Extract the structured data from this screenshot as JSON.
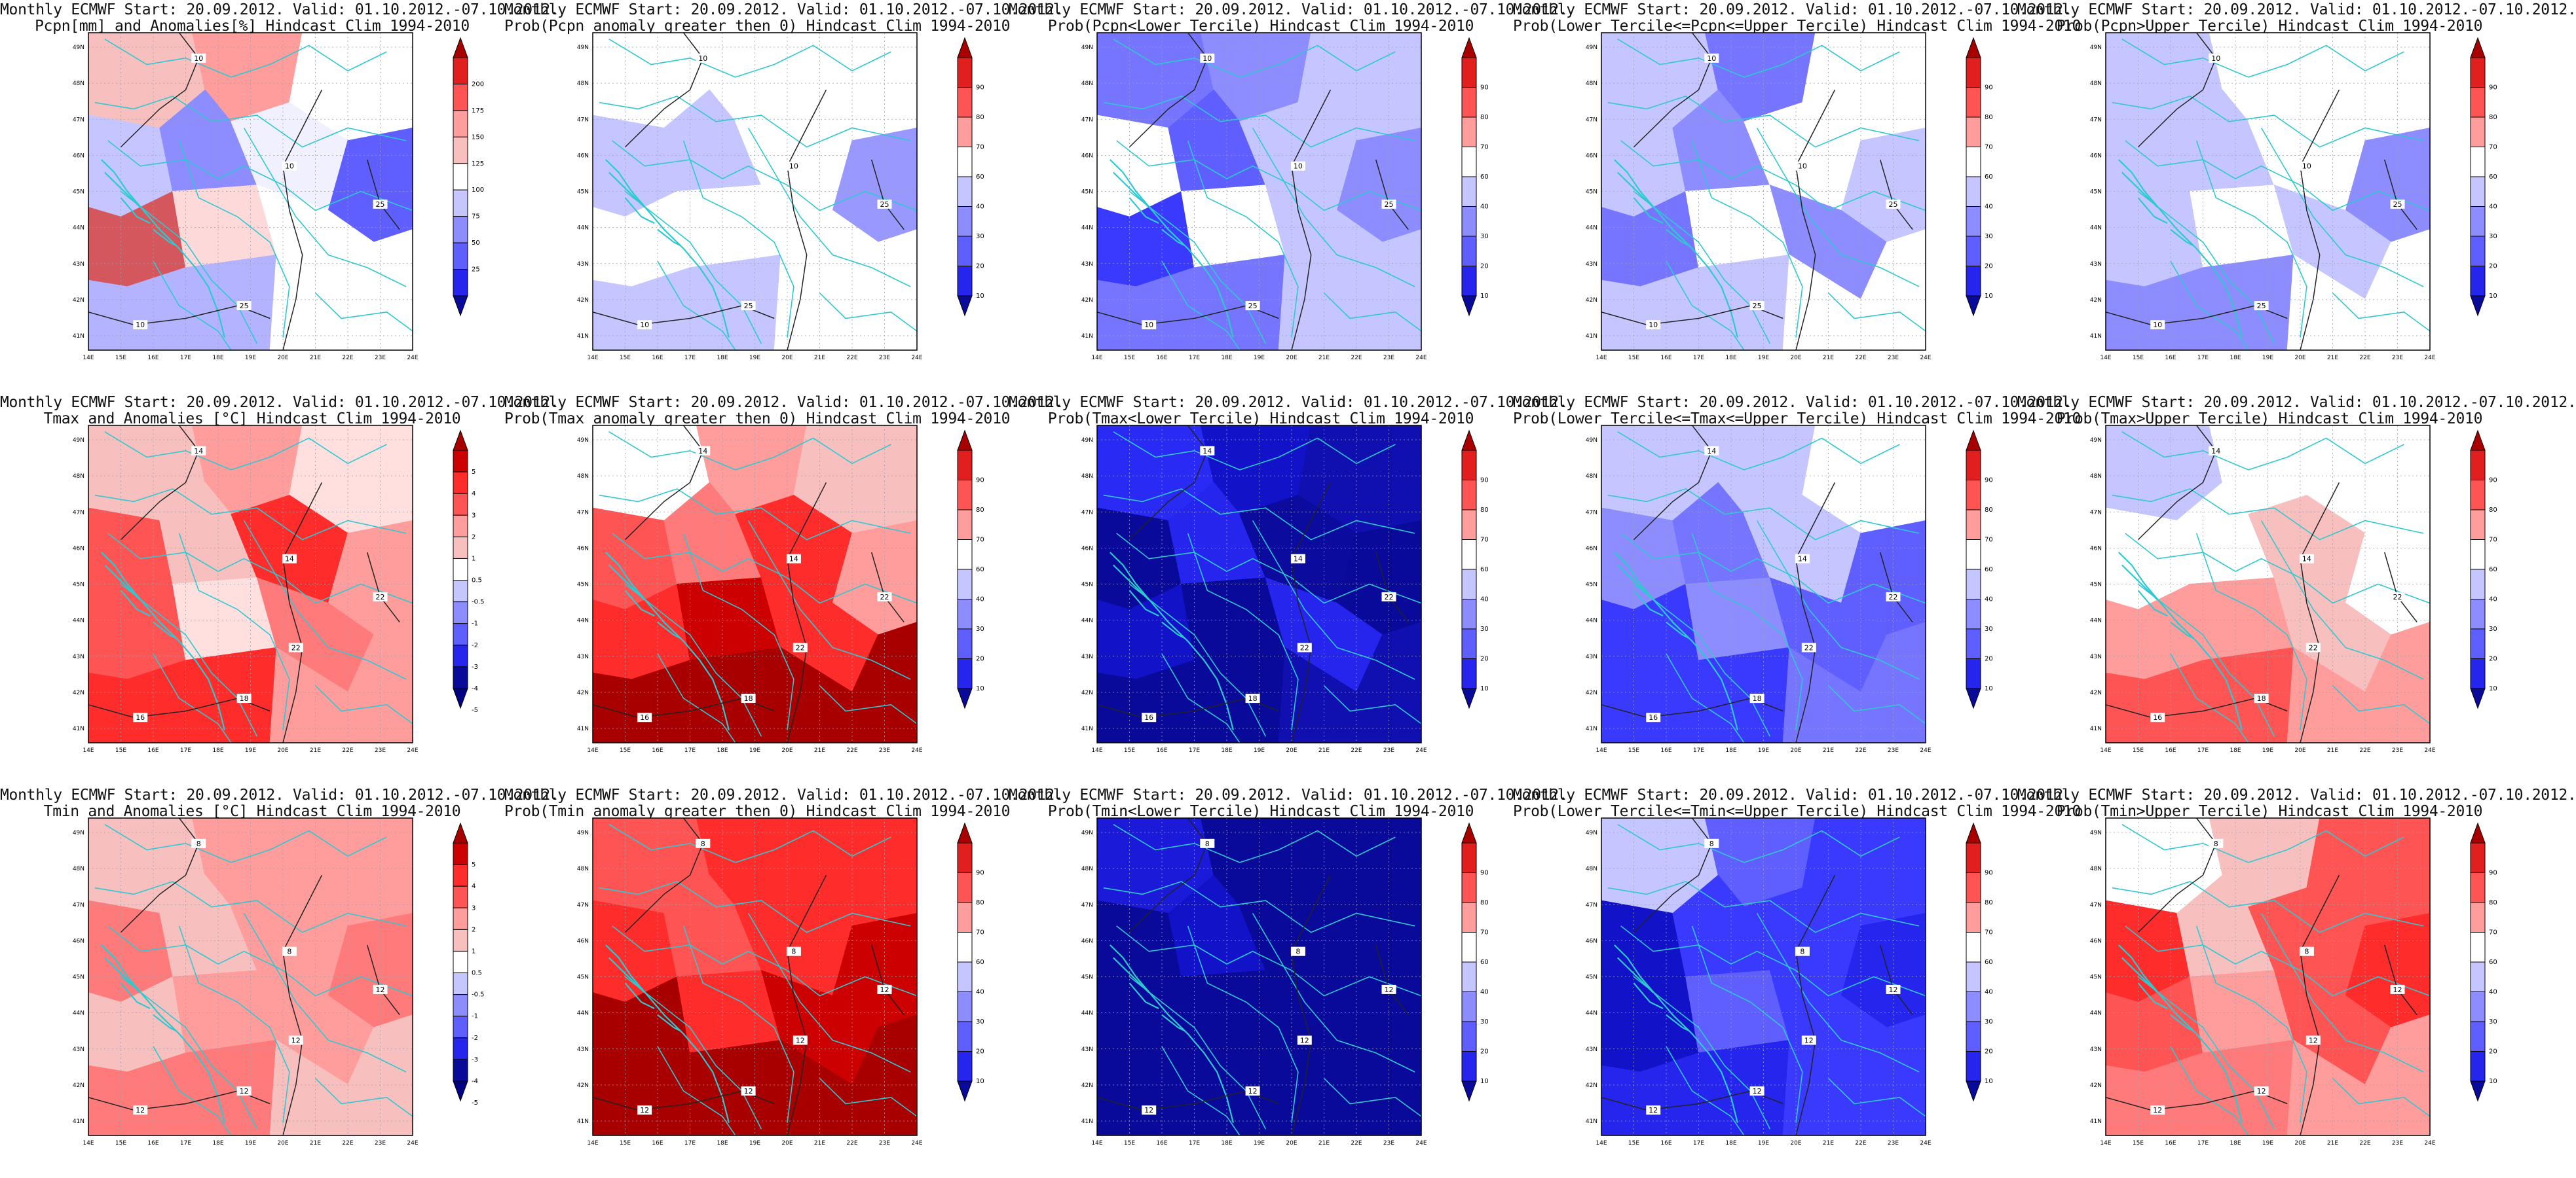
{
  "page": {
    "background": "#ffffff"
  },
  "grid": {
    "rows": 3,
    "cols": 5
  },
  "axes": {
    "lat_labels": [
      "49N",
      "48N",
      "47N",
      "46N",
      "45N",
      "44N",
      "43N",
      "42N",
      "41N"
    ],
    "lon_labels": [
      "14E",
      "15E",
      "16E",
      "17E",
      "18E",
      "19E",
      "20E",
      "21E",
      "22E",
      "23E",
      "24E"
    ]
  },
  "panels": [
    {
      "title1": "Monthly ECMWF Start: 20.09.2012. Valid: 01.10.2012.-07.10.2012.",
      "title2": "Pcpn[mm] and Anomalies[%] Hindcast Clim 1994-2010",
      "colorbar": {
        "ticks": [
          "200",
          "175",
          "150",
          "125",
          "100",
          "75",
          "50",
          "25"
        ],
        "scheme": "anom"
      },
      "contour_labels": [
        "10",
        "10",
        "10",
        "25",
        "25"
      ],
      "colors": [
        "#f7c0bf",
        "#ff9d9c",
        "#ffffff",
        "#c5c6ff",
        "#8d8dff",
        "#f0f0ff",
        "#5f5fff",
        "#d5575e",
        "#fdd9d9",
        "#ffffff",
        "#b3b3ff",
        "#ffffff"
      ]
    },
    {
      "title1": "Monthly ECMWF Start: 20.09.2012. Valid: 01.10.2012.-07.10.2012.",
      "title2": "Prob(Pcpn anomaly greater then 0) Hindcast Clim 1994-2010",
      "colorbar": {
        "ticks": [
          "90",
          "80",
          "70",
          "60",
          "40",
          "30",
          "20",
          "10"
        ],
        "scheme": "prob"
      },
      "contour_labels": [
        "10",
        "10",
        "10",
        "25",
        "25"
      ],
      "colors": [
        "#ffffff",
        "#ffffff",
        "#ffffff",
        "#c5c6ff",
        "#c5c6ff",
        "#ffffff",
        "#9898ff",
        "#ffffff",
        "#ffffff",
        "#ffffff",
        "#c5c6ff",
        "#ffffff"
      ]
    },
    {
      "title1": "Monthly ECMWF Start: 20.09.2012. Valid: 01.10.2012.-07.10.2012.",
      "title2": "Prob(Pcpn<Lower Tercile) Hindcast Clim 1994-2010",
      "colorbar": {
        "ticks": [
          "90",
          "80",
          "70",
          "60",
          "40",
          "30",
          "20",
          "10"
        ],
        "scheme": "prob"
      },
      "contour_labels": [
        "10",
        "10",
        "10",
        "25",
        "25"
      ],
      "colors": [
        "#7575ff",
        "#8d8dff",
        "#c5c6ff",
        "#ffffff",
        "#5f5fff",
        "#c5c6ff",
        "#8d8dff",
        "#3a3aff",
        "#ffffff",
        "#c5c6ff",
        "#7575ff",
        "#c5c6ff"
      ]
    },
    {
      "title1": "Monthly ECMWF Start: 20.09.2012. Valid: 01.10.2012.-07.10.2012.",
      "title2": "Prob(Lower Tercile<=Pcpn<=Upper Tercile) Hindcast Clim 1994-2010",
      "colorbar": {
        "ticks": [
          "90",
          "80",
          "70",
          "60",
          "40",
          "30",
          "20",
          "10"
        ],
        "scheme": "prob"
      },
      "contour_labels": [
        "10",
        "10",
        "10",
        "25",
        "25"
      ],
      "colors": [
        "#c5c6ff",
        "#7575ff",
        "#ffffff",
        "#c5c6ff",
        "#8d8dff",
        "#ffffff",
        "#c5c6ff",
        "#7575ff",
        "#ffffff",
        "#8d8dff",
        "#c5c6ff",
        "#ffffff"
      ]
    },
    {
      "title1": "Monthly ECMWF Start: 20.09.2012. Valid: 01.10.2012.-07.10.2012.",
      "title2": "Prob(Pcpn>Upper Tercile) Hindcast Clim 1994-2010",
      "colorbar": {
        "ticks": [
          "90",
          "80",
          "70",
          "60",
          "40",
          "30",
          "20",
          "10"
        ],
        "scheme": "prob"
      },
      "contour_labels": [
        "10",
        "10",
        "10",
        "25",
        "25"
      ],
      "colors": [
        "#c5c6ff",
        "#ffffff",
        "#ffffff",
        "#c5c6ff",
        "#c5c6ff",
        "#ffffff",
        "#8d8dff",
        "#c5c6ff",
        "#ffffff",
        "#c5c6ff",
        "#8d8dff",
        "#ffffff"
      ]
    },
    {
      "title1": "Monthly ECMWF Start: 20.09.2012. Valid: 01.10.2012.-07.10.2012.",
      "title2": "Tmax and Anomalies [°C] Hindcast Clim 1994-2010",
      "colorbar": {
        "ticks": [
          "5",
          "4",
          "3",
          "2",
          "1",
          "0.5",
          "-0.5",
          "-1",
          "-2",
          "-3",
          "-4",
          "-5"
        ],
        "scheme": "tanom"
      },
      "contour_labels": [
        "14",
        "14",
        "16",
        "18",
        "22",
        "22"
      ],
      "colors": [
        "#f7c0bf",
        "#ff9d9c",
        "#ffe0df",
        "#ff5454",
        "#f7c0bf",
        "#ff2c2c",
        "#ff9d9c",
        "#ff5454",
        "#ffe0df",
        "#ff7a7a",
        "#ff2c2c",
        "#ff9d9c"
      ]
    },
    {
      "title1": "Monthly ECMWF Start: 20.09.2012. Valid: 01.10.2012.-07.10.2012.",
      "title2": "Prob(Tmax anomaly greater then 0) Hindcast Clim 1994-2010",
      "colorbar": {
        "ticks": [
          "90",
          "80",
          "70",
          "60",
          "40",
          "30",
          "20",
          "10"
        ],
        "scheme": "prob"
      },
      "contour_labels": [
        "14",
        "14",
        "16",
        "18",
        "22",
        "22"
      ],
      "colors": [
        "#ffffff",
        "#ff9d9c",
        "#f7c0bf",
        "#ff5454",
        "#ff7a7a",
        "#ff2c2c",
        "#ff9d9c",
        "#ff2c2c",
        "#cc0000",
        "#ff2c2c",
        "#a80000",
        "#a80000"
      ]
    },
    {
      "title1": "Monthly ECMWF Start: 20.09.2012. Valid: 01.10.2012.-07.10.2012.",
      "title2": "Prob(Tmax<Lower Tercile) Hindcast Clim 1994-2010",
      "colorbar": {
        "ticks": [
          "90",
          "80",
          "70",
          "60",
          "40",
          "30",
          "20",
          "10"
        ],
        "scheme": "prob"
      },
      "contour_labels": [
        "14",
        "14",
        "16",
        "18",
        "22",
        "22"
      ],
      "colors": [
        "#2a2af5",
        "#1212c8",
        "#1010b0",
        "#0a0a9a",
        "#2525ee",
        "#0b0b9e",
        "#0a0a9a",
        "#1212c8",
        "#0a0a9a",
        "#2525ee",
        "#0a0a9a",
        "#1010b0"
      ]
    },
    {
      "title1": "Monthly ECMWF Start: 20.09.2012. Valid: 01.10.2012.-07.10.2012.",
      "title2": "Prob(Lower Tercile<=Tmax<=Upper Tercile) Hindcast Clim 1994-2010",
      "colorbar": {
        "ticks": [
          "90",
          "80",
          "70",
          "60",
          "40",
          "30",
          "20",
          "10"
        ],
        "scheme": "prob"
      },
      "contour_labels": [
        "14",
        "14",
        "16",
        "18",
        "22",
        "22"
      ],
      "colors": [
        "#c5c6ff",
        "#c5c6ff",
        "#ffffff",
        "#8d8dff",
        "#7575ff",
        "#c5c6ff",
        "#5f5fff",
        "#3a3aff",
        "#8d8dff",
        "#5f5fff",
        "#3a3aff",
        "#7575ff"
      ]
    },
    {
      "title1": "Monthly ECMWF Start: 20.09.2012. Valid: 01.10.2012.-07.10.2012.",
      "title2": "Prob(Tmax>Upper Tercile) Hindcast Clim 1994-2010",
      "colorbar": {
        "ticks": [
          "90",
          "80",
          "70",
          "60",
          "40",
          "30",
          "20",
          "10"
        ],
        "scheme": "prob"
      },
      "contour_labels": [
        "14",
        "14",
        "16",
        "18",
        "22",
        "22"
      ],
      "colors": [
        "#c5c6ff",
        "#ffffff",
        "#ffffff",
        "#ffffff",
        "#ffffff",
        "#f7c0bf",
        "#ffffff",
        "#ff9d9c",
        "#ff9d9c",
        "#f7c0bf",
        "#ff5454",
        "#ff9d9c"
      ]
    },
    {
      "title1": "Monthly ECMWF Start: 20.09.2012. Valid: 01.10.2012.-07.10.2012.",
      "title2": "Tmin and Anomalies [°C] Hindcast Clim 1994-2010",
      "colorbar": {
        "ticks": [
          "5",
          "4",
          "3",
          "2",
          "1",
          "0.5",
          "-0.5",
          "-1",
          "-2",
          "-3",
          "-4",
          "-5"
        ],
        "scheme": "tanom"
      },
      "contour_labels": [
        "8",
        "8",
        "12",
        "12",
        "12",
        "12"
      ],
      "colors": [
        "#f7c0bf",
        "#ff9d9c",
        "#ff9d9c",
        "#ff7a7a",
        "#f7c0bf",
        "#ff9d9c",
        "#ff7a7a",
        "#f7c0bf",
        "#ff9d9c",
        "#ff9d9c",
        "#ff7a7a",
        "#f7c0bf"
      ]
    },
    {
      "title1": "Monthly ECMWF Start: 20.09.2012. Valid: 01.10.2012.-07.10.2012.",
      "title2": "Prob(Tmin anomaly greater then 0) Hindcast Clim 1994-2010",
      "colorbar": {
        "ticks": [
          "90",
          "80",
          "70",
          "60",
          "40",
          "30",
          "20",
          "10"
        ],
        "scheme": "prob"
      },
      "contour_labels": [
        "8",
        "8",
        "12",
        "12",
        "12",
        "12"
      ],
      "colors": [
        "#ff5454",
        "#ff2c2c",
        "#ff2c2c",
        "#ff2c2c",
        "#ff5454",
        "#ff2c2c",
        "#cc0000",
        "#a80000",
        "#ff2c2c",
        "#cc0000",
        "#a80000",
        "#a80000"
      ]
    },
    {
      "title1": "Monthly ECMWF Start: 20.09.2012. Valid: 01.10.2012.-07.10.2012.",
      "title2": "Prob(Tmin<Lower Tercile) Hindcast Clim 1994-2010",
      "colorbar": {
        "ticks": [
          "90",
          "80",
          "70",
          "60",
          "40",
          "30",
          "20",
          "10"
        ],
        "scheme": "prob"
      },
      "contour_labels": [
        "8",
        "8",
        "12",
        "12",
        "12",
        "12"
      ],
      "colors": [
        "#1a1ad8",
        "#0a0a9a",
        "#0a0a9a",
        "#0a0a9a",
        "#1212c8",
        "#0a0a9a",
        "#0a0a9a",
        "#0a0a9a",
        "#0a0a9a",
        "#0a0a9a",
        "#0a0a9a",
        "#0a0a9a"
      ]
    },
    {
      "title1": "Monthly ECMWF Start: 20.09.2012. Valid: 01.10.2012.-07.10.2012.",
      "title2": "Prob(Lower Tercile<=Tmin<=Upper Tercile) Hindcast Clim 1994-2010",
      "colorbar": {
        "ticks": [
          "90",
          "80",
          "70",
          "60",
          "40",
          "30",
          "20",
          "10"
        ],
        "scheme": "prob"
      },
      "contour_labels": [
        "8",
        "8",
        "12",
        "12",
        "12",
        "12"
      ],
      "colors": [
        "#c5c6ff",
        "#5f5fff",
        "#3a3aff",
        "#1212c8",
        "#3a3aff",
        "#3a3aff",
        "#2525ee",
        "#1212c8",
        "#5f5fff",
        "#3a3aff",
        "#2525ee",
        "#3a3aff"
      ]
    },
    {
      "title1": "Monthly ECMWF Start: 20.09.2012. Valid: 01.10.2012.-07.10.2012.",
      "title2": "Prob(Tmin>Upper Tercile) Hindcast Clim 1994-2010",
      "colorbar": {
        "ticks": [
          "90",
          "80",
          "70",
          "60",
          "40",
          "30",
          "20",
          "10"
        ],
        "scheme": "prob"
      },
      "contour_labels": [
        "8",
        "8",
        "12",
        "12",
        "12",
        "12"
      ],
      "colors": [
        "#ffffff",
        "#f7c0bf",
        "#ff5454",
        "#ff2c2c",
        "#f7c0bf",
        "#ff5454",
        "#ff2c2c",
        "#ff5454",
        "#ff9d9c",
        "#ff5454",
        "#ff7a7a",
        "#ff9d9c"
      ]
    }
  ],
  "colorbar_schemes": {
    "anom": [
      "#a80000",
      "#e21f1f",
      "#ff5454",
      "#ff9d9c",
      "#f7c0bf",
      "#ffffff",
      "#c5c6ff",
      "#8d8dff",
      "#5f5fff",
      "#2525ee",
      "#0a0a9a"
    ],
    "prob": [
      "#a80000",
      "#e21f1f",
      "#ff5454",
      "#ff9d9c",
      "#ffffff",
      "#c5c6ff",
      "#8d8dff",
      "#5f5fff",
      "#2525ee",
      "#0a0a9a"
    ],
    "tanom": [
      "#a80000",
      "#cc0000",
      "#ff2c2c",
      "#ff5454",
      "#ff9d9c",
      "#f7c0bf",
      "#ffffff",
      "#c5c6ff",
      "#8d8dff",
      "#5f5fff",
      "#2525ee",
      "#0a0a9a",
      "#000080"
    ]
  }
}
